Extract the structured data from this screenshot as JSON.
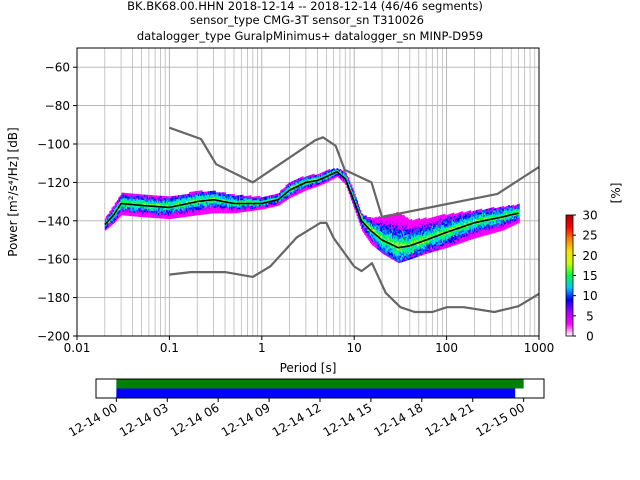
{
  "header": {
    "line1": "BK.BK68.00.HHN   2018-12-14 -- 2018-12-14  (46/46 segments)",
    "line2": "sensor_type CMG-3T sensor_sn T310026",
    "line3": "datalogger_type GuralpMinimus+ datalogger_sn MINP-D959"
  },
  "chart_data": [
    {
      "type": "heatmap",
      "subtype": "probabilistic-power-spectral-density",
      "xlabel": "Period [s]",
      "ylabel": "Power [m²/s⁴/Hz] [dB]",
      "x_scale": "log",
      "xlim": [
        0.01,
        1000
      ],
      "ylim": [
        -200,
        -50
      ],
      "x_ticks": [
        "0.01",
        "0.1",
        "1",
        "10",
        "100",
        "1000"
      ],
      "y_ticks": [
        "−200",
        "−180",
        "−160",
        "−140",
        "−120",
        "−100",
        "−80",
        "−60"
      ],
      "grid": true,
      "colorbar": {
        "label": "[%]",
        "range": [
          0,
          30
        ],
        "ticks": [
          "0",
          "5",
          "10",
          "15",
          "20",
          "25",
          "30"
        ],
        "colormap": [
          "#ffffff",
          "#ff00ff",
          "#a000ff",
          "#0000ff",
          "#00c8ff",
          "#00ff40",
          "#c8ff00",
          "#ffe000",
          "#ff8000",
          "#ff0000",
          "#b00000"
        ]
      },
      "series": [
        {
          "name": "",
          "role": "high noise model",
          "color": "#666666",
          "x": [
            0.1,
            0.22,
            0.32,
            0.8,
            3.8,
            4.6,
            6.3,
            7.9,
            15.4,
            20,
            354.8,
            1000
          ],
          "y": [
            -91.5,
            -97.4,
            -110.5,
            -120,
            -98,
            -96.5,
            -101,
            -113.5,
            -120,
            -138,
            -126,
            -112
          ]
        },
        {
          "name": "",
          "role": "low noise model",
          "color": "#666666",
          "x": [
            0.1,
            0.17,
            0.4,
            0.8,
            1.24,
            2.4,
            4.3,
            5,
            6,
            10,
            12,
            15.6,
            21.9,
            31.6,
            45,
            70,
            101,
            154,
            328,
            600,
            1000
          ],
          "y": [
            -168,
            -166.7,
            -166.7,
            -169.2,
            -163.7,
            -148.6,
            -141.1,
            -141.1,
            -149,
            -163.8,
            -166.2,
            -162.1,
            -177.5,
            -185,
            -187.5,
            -187.5,
            -185,
            -185,
            -187.5,
            -184.5,
            -178
          ]
        },
        {
          "name": "",
          "role": "median PSD",
          "color": "#000000",
          "x": [
            0.02,
            0.025,
            0.03,
            0.05,
            0.1,
            0.2,
            0.3,
            0.5,
            1,
            1.5,
            2,
            3,
            4,
            5,
            6.5,
            8,
            10,
            12,
            15,
            20,
            30,
            40,
            60,
            100,
            200,
            400,
            600
          ],
          "y": [
            -142,
            -137,
            -131,
            -132,
            -133,
            -130,
            -129,
            -131,
            -131,
            -129,
            -124,
            -120,
            -119,
            -117,
            -114.5,
            -118,
            -130,
            -140,
            -145,
            -150,
            -154,
            -153,
            -150,
            -146,
            -141,
            -138,
            -136
          ]
        }
      ],
      "density_band": {
        "x": [
          0.02,
          0.025,
          0.03,
          0.05,
          0.1,
          0.2,
          0.3,
          0.5,
          1,
          1.5,
          2,
          3,
          4,
          5,
          6.5,
          8,
          10,
          12,
          15,
          20,
          30,
          40,
          60,
          100,
          200,
          400,
          600
        ],
        "upper": [
          -139,
          -132,
          -126,
          -127,
          -128,
          -125,
          -125,
          -127,
          -128,
          -126,
          -120,
          -117,
          -116,
          -114,
          -113,
          -115,
          -126,
          -137,
          -139,
          -138,
          -136,
          -140,
          -139,
          -137,
          -135,
          -133,
          -132
        ],
        "lower": [
          -145,
          -141,
          -137,
          -138,
          -139,
          -137,
          -136,
          -136,
          -134,
          -132,
          -128,
          -124,
          -122,
          -120,
          -117,
          -121,
          -134,
          -145,
          -152,
          -157,
          -162,
          -160,
          -157,
          -154,
          -149,
          -145,
          -141
        ]
      }
    },
    {
      "type": "timeline",
      "x_ticks": [
        "12-14 00",
        "12-14 03",
        "12-14 06",
        "12-14 09",
        "12-14 12",
        "12-14 15",
        "12-14 18",
        "12-14 21",
        "12-15 00"
      ],
      "xlim_hours": [
        -1.2,
        25.2
      ],
      "bars": [
        {
          "name": "",
          "color": "#008000",
          "start_hours": 0,
          "end_hours": 24
        },
        {
          "name": "",
          "color": "#0000ff",
          "start_hours": 0,
          "end_hours": 23.5
        }
      ]
    }
  ]
}
